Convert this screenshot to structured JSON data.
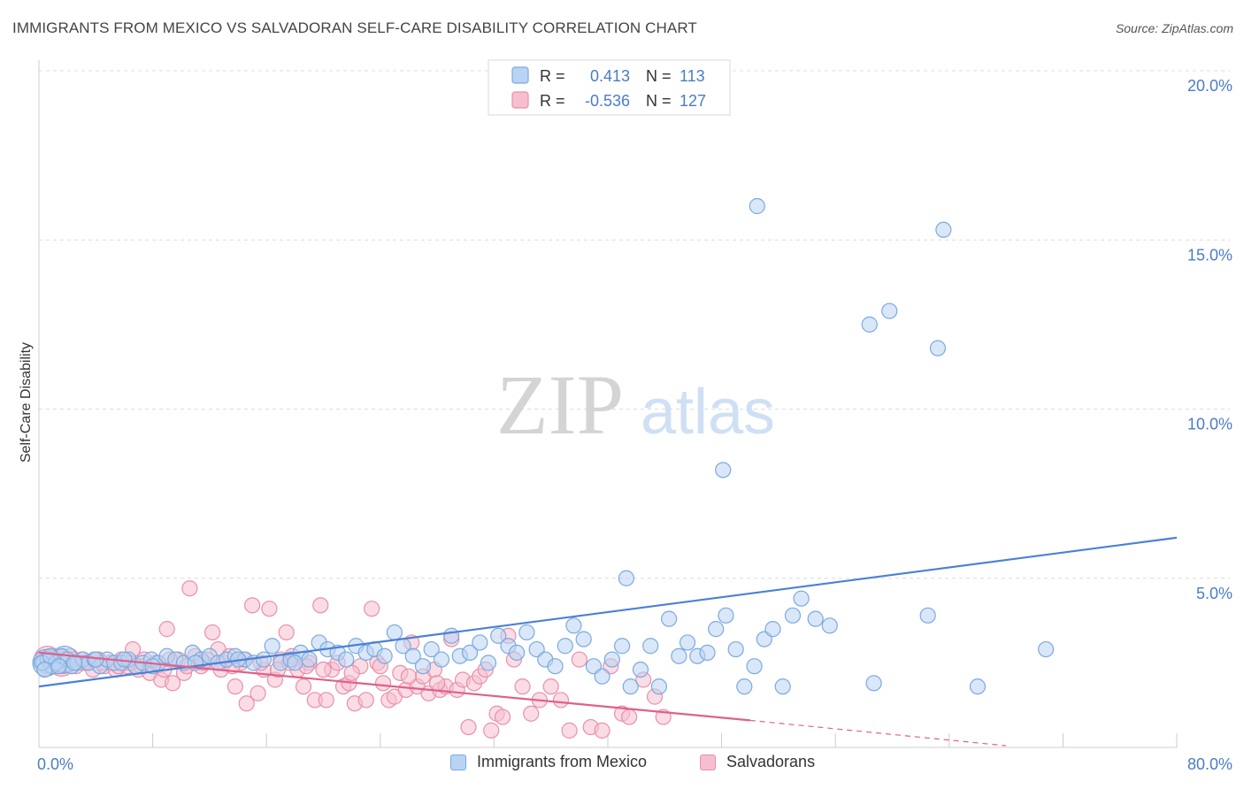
{
  "title": "IMMIGRANTS FROM MEXICO VS SALVADORAN SELF-CARE DISABILITY CORRELATION CHART",
  "source": "Source: ZipAtlas.com",
  "watermark": {
    "zip": "ZIP",
    "atlas": "atlas"
  },
  "legend": {
    "rows": [
      {
        "r_label": "R =",
        "r_value": "0.413",
        "n_label": "N =",
        "n_value": "113",
        "color": "#7aaae0",
        "fill": "#b9d3f3"
      },
      {
        "r_label": "R =",
        "r_value": "-0.536",
        "n_label": "N =",
        "n_value": "127",
        "color": "#e890aa",
        "fill": "#f6bfd0"
      }
    ]
  },
  "bottom_legend": [
    {
      "label": "Immigrants from Mexico",
      "color": "#7aaae0",
      "fill": "#b9d3f3"
    },
    {
      "label": "Salvadorans",
      "color": "#e890aa",
      "fill": "#f6bfd0"
    }
  ],
  "chart_data": {
    "type": "scatter",
    "title": "IMMIGRANTS FROM MEXICO VS SALVADORAN SELF-CARE DISABILITY CORRELATION CHART",
    "xlabel": "",
    "ylabel": "Self-Care Disability",
    "xlim": [
      0,
      80
    ],
    "ylim": [
      0,
      20
    ],
    "x_tick_labels": [
      "0.0%",
      "80.0%"
    ],
    "y_ticks": [
      5,
      10,
      15,
      20
    ],
    "y_tick_labels": [
      "5.0%",
      "10.0%",
      "15.0%",
      "20.0%"
    ],
    "grid": true,
    "series": [
      {
        "name": "Immigrants from Mexico",
        "color": "#4a80d8",
        "fill": "#b9d3f3",
        "stroke": "#7aaae0",
        "trendline": {
          "x": [
            0,
            80
          ],
          "y": [
            1.8,
            6.2
          ],
          "dashed_from": null
        },
        "points": [
          [
            0.3,
            2.5
          ],
          [
            0.6,
            2.6
          ],
          [
            0.9,
            2.4
          ],
          [
            1.2,
            2.5
          ],
          [
            1.6,
            2.7
          ],
          [
            2.0,
            2.6
          ],
          [
            2.3,
            2.4
          ],
          [
            2.7,
            2.5
          ],
          [
            3.1,
            2.6
          ],
          [
            3.5,
            2.5
          ],
          [
            3.9,
            2.6
          ],
          [
            4.3,
            2.4
          ],
          [
            4.8,
            2.6
          ],
          [
            5.3,
            2.5
          ],
          [
            5.8,
            2.5
          ],
          [
            6.3,
            2.6
          ],
          [
            6.8,
            2.4
          ],
          [
            7.3,
            2.5
          ],
          [
            7.9,
            2.6
          ],
          [
            8.4,
            2.5
          ],
          [
            9.0,
            2.7
          ],
          [
            9.6,
            2.6
          ],
          [
            10.2,
            2.5
          ],
          [
            10.8,
            2.8
          ],
          [
            11.4,
            2.6
          ],
          [
            12.0,
            2.7
          ],
          [
            12.6,
            2.5
          ],
          [
            13.2,
            2.6
          ],
          [
            13.8,
            2.7
          ],
          [
            14.5,
            2.6
          ],
          [
            15.1,
            2.5
          ],
          [
            15.8,
            2.6
          ],
          [
            16.4,
            3.0
          ],
          [
            17.0,
            2.5
          ],
          [
            17.7,
            2.6
          ],
          [
            18.4,
            2.8
          ],
          [
            19.0,
            2.6
          ],
          [
            19.7,
            3.1
          ],
          [
            20.3,
            2.9
          ],
          [
            21.0,
            2.8
          ],
          [
            21.6,
            2.6
          ],
          [
            22.3,
            3.0
          ],
          [
            23.0,
            2.8
          ],
          [
            23.6,
            2.9
          ],
          [
            24.3,
            2.7
          ],
          [
            25.0,
            3.4
          ],
          [
            25.6,
            3.0
          ],
          [
            26.3,
            2.7
          ],
          [
            27.0,
            2.4
          ],
          [
            27.6,
            2.9
          ],
          [
            28.3,
            2.6
          ],
          [
            29.0,
            3.3
          ],
          [
            29.6,
            2.7
          ],
          [
            30.3,
            2.8
          ],
          [
            31.0,
            3.1
          ],
          [
            31.6,
            2.5
          ],
          [
            32.3,
            3.3
          ],
          [
            33.0,
            3.0
          ],
          [
            33.6,
            2.8
          ],
          [
            34.3,
            3.4
          ],
          [
            35.0,
            2.9
          ],
          [
            35.6,
            2.6
          ],
          [
            36.3,
            2.4
          ],
          [
            37.0,
            3.0
          ],
          [
            37.6,
            3.6
          ],
          [
            38.3,
            3.2
          ],
          [
            39.0,
            2.4
          ],
          [
            39.6,
            2.1
          ],
          [
            40.3,
            2.6
          ],
          [
            41.0,
            3.0
          ],
          [
            41.6,
            1.8
          ],
          [
            42.3,
            2.3
          ],
          [
            43.0,
            3.0
          ],
          [
            43.6,
            1.8
          ],
          [
            44.3,
            3.8
          ],
          [
            45.0,
            2.7
          ],
          [
            45.6,
            3.1
          ],
          [
            46.3,
            2.7
          ],
          [
            47.0,
            2.8
          ],
          [
            47.6,
            3.5
          ],
          [
            48.3,
            3.9
          ],
          [
            49.0,
            2.9
          ],
          [
            49.6,
            1.8
          ],
          [
            50.3,
            2.4
          ],
          [
            51.0,
            3.2
          ],
          [
            51.6,
            3.5
          ],
          [
            52.3,
            1.8
          ],
          [
            53.0,
            3.9
          ],
          [
            53.6,
            4.4
          ],
          [
            54.6,
            3.8
          ],
          [
            55.6,
            3.6
          ],
          [
            58.7,
            1.9
          ],
          [
            62.5,
            3.9
          ],
          [
            66.0,
            1.8
          ],
          [
            70.8,
            2.9
          ],
          [
            41.3,
            5.0
          ],
          [
            48.1,
            8.2
          ],
          [
            50.5,
            16.0
          ],
          [
            63.6,
            15.3
          ],
          [
            58.4,
            12.5
          ],
          [
            59.8,
            12.9
          ],
          [
            63.2,
            11.8
          ],
          [
            0.2,
            2.5
          ],
          [
            0.4,
            2.3
          ],
          [
            0.8,
            2.7
          ],
          [
            1.4,
            2.4
          ],
          [
            2.5,
            2.5
          ],
          [
            4.0,
            2.6
          ],
          [
            6.0,
            2.6
          ],
          [
            8.0,
            2.4
          ],
          [
            11.0,
            2.5
          ],
          [
            14.0,
            2.6
          ],
          [
            18.0,
            2.5
          ]
        ],
        "big_points": [
          [
            0.5,
            2.5
          ],
          [
            1.8,
            2.6
          ]
        ]
      },
      {
        "name": "Salvadorans",
        "color": "#e0608a",
        "fill": "#f6bfd0",
        "stroke": "#e890aa",
        "trendline": {
          "x": [
            0,
            50
          ],
          "y": [
            2.8,
            0.8
          ],
          "dashed_to": [
            68,
            0.05
          ]
        },
        "points": [
          [
            0.3,
            2.6
          ],
          [
            0.6,
            2.5
          ],
          [
            0.9,
            2.7
          ],
          [
            1.2,
            2.4
          ],
          [
            1.5,
            2.6
          ],
          [
            1.9,
            2.5
          ],
          [
            2.2,
            2.7
          ],
          [
            2.6,
            2.4
          ],
          [
            3.0,
            2.6
          ],
          [
            3.4,
            2.5
          ],
          [
            3.8,
            2.3
          ],
          [
            4.2,
            2.6
          ],
          [
            4.6,
            2.4
          ],
          [
            5.0,
            2.5
          ],
          [
            5.4,
            2.3
          ],
          [
            5.8,
            2.6
          ],
          [
            6.2,
            2.4
          ],
          [
            6.6,
            2.9
          ],
          [
            7.0,
            2.3
          ],
          [
            7.4,
            2.6
          ],
          [
            7.8,
            2.2
          ],
          [
            8.2,
            2.5
          ],
          [
            8.6,
            2.0
          ],
          [
            9.0,
            3.5
          ],
          [
            9.4,
            1.9
          ],
          [
            9.8,
            2.6
          ],
          [
            10.2,
            2.2
          ],
          [
            10.6,
            4.7
          ],
          [
            11.0,
            2.7
          ],
          [
            11.4,
            2.4
          ],
          [
            11.8,
            2.6
          ],
          [
            12.2,
            3.4
          ],
          [
            12.6,
            2.9
          ],
          [
            13.0,
            2.5
          ],
          [
            13.4,
            2.7
          ],
          [
            13.8,
            1.8
          ],
          [
            14.2,
            2.5
          ],
          [
            14.6,
            1.3
          ],
          [
            15.0,
            4.2
          ],
          [
            15.4,
            1.6
          ],
          [
            15.8,
            2.3
          ],
          [
            16.2,
            4.1
          ],
          [
            16.6,
            2.0
          ],
          [
            17.0,
            2.6
          ],
          [
            17.4,
            3.4
          ],
          [
            17.8,
            2.7
          ],
          [
            18.2,
            2.3
          ],
          [
            18.6,
            1.8
          ],
          [
            19.0,
            2.5
          ],
          [
            19.4,
            1.4
          ],
          [
            19.8,
            4.2
          ],
          [
            20.2,
            1.4
          ],
          [
            20.6,
            2.3
          ],
          [
            21.0,
            2.5
          ],
          [
            21.4,
            1.8
          ],
          [
            21.8,
            1.9
          ],
          [
            22.2,
            1.3
          ],
          [
            22.6,
            2.4
          ],
          [
            23.0,
            1.4
          ],
          [
            23.4,
            4.1
          ],
          [
            23.8,
            2.5
          ],
          [
            24.2,
            1.9
          ],
          [
            24.6,
            1.4
          ],
          [
            25.0,
            1.5
          ],
          [
            25.4,
            2.2
          ],
          [
            25.8,
            1.7
          ],
          [
            26.2,
            3.1
          ],
          [
            26.6,
            1.8
          ],
          [
            27.0,
            2.1
          ],
          [
            27.4,
            1.6
          ],
          [
            27.8,
            2.3
          ],
          [
            28.2,
            1.7
          ],
          [
            28.6,
            1.8
          ],
          [
            29.0,
            3.2
          ],
          [
            29.4,
            1.7
          ],
          [
            29.8,
            2.0
          ],
          [
            30.2,
            0.6
          ],
          [
            30.6,
            1.9
          ],
          [
            31.0,
            2.1
          ],
          [
            31.4,
            2.3
          ],
          [
            31.8,
            0.5
          ],
          [
            32.2,
            1.0
          ],
          [
            32.6,
            0.9
          ],
          [
            33.0,
            3.3
          ],
          [
            33.4,
            2.6
          ],
          [
            34.0,
            1.8
          ],
          [
            34.6,
            1.0
          ],
          [
            35.2,
            1.4
          ],
          [
            36.0,
            1.8
          ],
          [
            36.7,
            1.4
          ],
          [
            37.3,
            0.5
          ],
          [
            38.0,
            2.6
          ],
          [
            38.8,
            0.6
          ],
          [
            39.6,
            0.5
          ],
          [
            40.2,
            2.4
          ],
          [
            41.0,
            1.0
          ],
          [
            41.5,
            0.9
          ],
          [
            42.5,
            2.0
          ],
          [
            43.3,
            1.5
          ],
          [
            43.9,
            0.9
          ],
          [
            0.2,
            2.5
          ],
          [
            0.5,
            2.4
          ],
          [
            0.8,
            2.6
          ],
          [
            1.1,
            2.5
          ],
          [
            1.7,
            2.4
          ],
          [
            2.4,
            2.6
          ],
          [
            3.2,
            2.5
          ],
          [
            4.4,
            2.5
          ],
          [
            5.6,
            2.4
          ],
          [
            6.4,
            2.5
          ],
          [
            7.2,
            2.4
          ],
          [
            8.8,
            2.3
          ],
          [
            9.2,
            2.6
          ],
          [
            10.4,
            2.4
          ],
          [
            11.6,
            2.5
          ],
          [
            12.8,
            2.3
          ],
          [
            13.6,
            2.4
          ],
          [
            14.4,
            2.6
          ],
          [
            15.6,
            2.5
          ],
          [
            16.8,
            2.3
          ],
          [
            17.6,
            2.5
          ],
          [
            18.8,
            2.4
          ],
          [
            20.0,
            2.3
          ],
          [
            22.0,
            2.2
          ],
          [
            24.0,
            2.4
          ],
          [
            26.0,
            2.1
          ],
          [
            28.0,
            1.9
          ]
        ],
        "big_points": [
          [
            0.6,
            2.6
          ],
          [
            1.6,
            2.5
          ]
        ]
      }
    ]
  }
}
